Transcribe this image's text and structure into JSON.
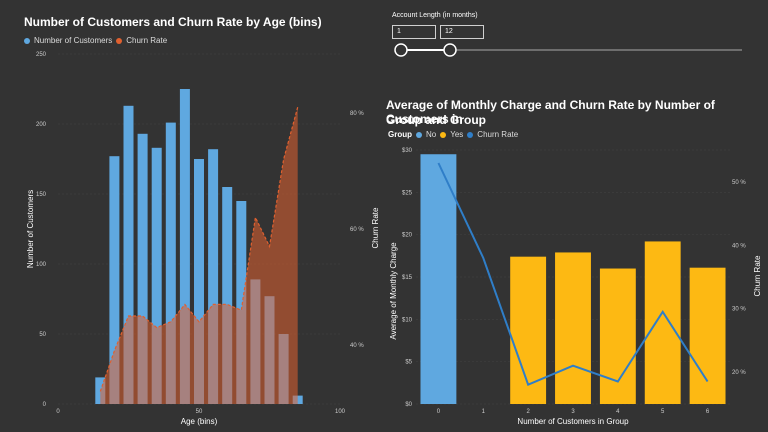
{
  "charts": {
    "age": {
      "title": "Number of Customers and Churn Rate by Age (bins)",
      "legend": [
        {
          "label": "Number of Customers",
          "color": "#5fa8e0"
        },
        {
          "label": "Churn Rate",
          "color": "#e0602f"
        }
      ]
    },
    "group": {
      "title_line1": "Average of Monthly Charge and Churn Rate by Number of Customers in",
      "title_line2": "Group and Group",
      "legend_title": "Group",
      "legend": [
        {
          "label": "No",
          "color": "#5fa8e0"
        },
        {
          "label": "Yes",
          "color": "#fdb913"
        },
        {
          "label": "Churn Rate",
          "color": "#2f7ec8"
        }
      ]
    }
  },
  "slicer": {
    "label": "Account Length (in months)",
    "min_value": "1",
    "max_value": "12"
  },
  "chart_data": [
    {
      "type": "bar",
      "title": "Number of Customers and Churn Rate by Age (bins)",
      "xlabel": "Age (bins)",
      "ylabel": "Number of Customers",
      "y2label": "Churn Rate",
      "xlim": [
        0,
        100
      ],
      "ylim": [
        0,
        250
      ],
      "y2ticks": [
        "40 %",
        "60 %",
        "80 %"
      ],
      "x_ticks": [
        "0",
        "50",
        "100"
      ],
      "y_ticks": [
        "0",
        "50",
        "100",
        "150",
        "200",
        "250"
      ],
      "x": [
        15,
        20,
        25,
        30,
        35,
        40,
        45,
        50,
        55,
        60,
        65,
        70,
        75,
        80,
        85
      ],
      "series": [
        {
          "name": "Number of Customers",
          "values": [
            19,
            177,
            213,
            193,
            183,
            201,
            225,
            175,
            182,
            155,
            145,
            89,
            77,
            50,
            6
          ]
        },
        {
          "name": "Churn Rate",
          "values": [
            32,
            39,
            45,
            45,
            43,
            44,
            47,
            44,
            47,
            47,
            46,
            62,
            57,
            72,
            81
          ]
        }
      ]
    },
    {
      "type": "bar",
      "title": "Average of Monthly Charge and Churn Rate by Number of Customers in Group and Group",
      "xlabel": "Number of Customers in Group",
      "ylabel": "Average of Monthly Charge",
      "y2label": "Churn Rate",
      "categories": [
        "0",
        "1",
        "2",
        "3",
        "4",
        "5",
        "6"
      ],
      "y_ticks": [
        "$0",
        "$5",
        "$10",
        "$15",
        "$20",
        "$25",
        "$30"
      ],
      "y2ticks": [
        "20 %",
        "30 %",
        "40 %",
        "50 %"
      ],
      "ylim": [
        0,
        30
      ],
      "series": [
        {
          "name": "No",
          "values": [
            29.5,
            null,
            null,
            null,
            null,
            null,
            null
          ]
        },
        {
          "name": "Yes",
          "values": [
            null,
            null,
            17.4,
            17.9,
            16,
            19.2,
            16.1
          ]
        },
        {
          "name": "Churn Rate",
          "values": [
            53,
            38,
            18,
            21,
            18.5,
            29.5,
            18.5
          ]
        }
      ]
    }
  ]
}
